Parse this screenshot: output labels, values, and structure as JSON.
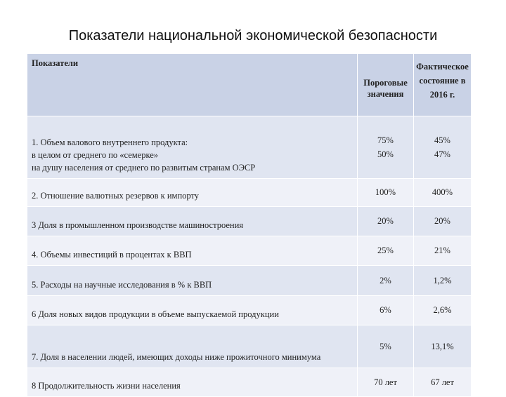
{
  "title": "Показатели национальной экономической безопасности",
  "table": {
    "headers": {
      "indicator": "Показатели",
      "threshold_lines": [
        "Пороговые",
        "значения"
      ],
      "actual_lines": [
        "Фактическое",
        "состояние в",
        "2016 г."
      ]
    },
    "rows": [
      {
        "label_lines": [
          "1. Объем валового внутреннего продукта:",
          "в целом от среднего по «семерке»",
          "на душу населения от среднего по развитым странам ОЭСР"
        ],
        "threshold": [
          "75%",
          "50%"
        ],
        "actual": [
          "45%",
          "47%"
        ]
      },
      {
        "label": "2. Отношение валютных резервов к импорту",
        "threshold": "100%",
        "actual": "400%"
      },
      {
        "label": "3 Доля в промышленном производстве машиностроения",
        "threshold": "20%",
        "actual": "20%"
      },
      {
        "label": "4. Объемы инвестиций в процентах к ВВП",
        "threshold": "25%",
        "actual": "21%"
      },
      {
        "label": "5. Расходы на научные исследования в % к ВВП",
        "threshold": "2%",
        "actual": "1,2%"
      },
      {
        "label": "6 Доля новых видов продукции в объеме выпускаемой продукции",
        "threshold": "6%",
        "actual": "2,6%"
      },
      {
        "label": "7. Доля в населении людей, имеющих доходы ниже прожиточного минимума",
        "threshold": "5%",
        "actual": "13,1%"
      },
      {
        "label": "8 Продолжительность жизни населения",
        "threshold": "70 лет",
        "actual": "67 лет"
      }
    ]
  },
  "colors": {
    "header_bg": "#c9d2e6",
    "row_dark": "#e0e5f1",
    "row_light": "#eff1f8"
  }
}
